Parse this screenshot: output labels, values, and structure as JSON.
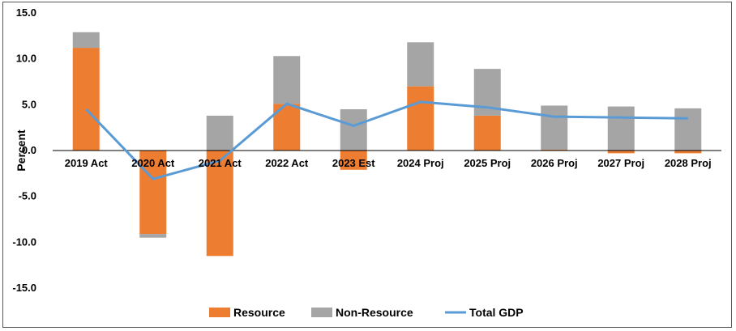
{
  "chart_data": {
    "type": "bar",
    "stacked": true,
    "title": "",
    "xlabel": "",
    "ylabel": "Percent",
    "ylim": [
      -15,
      15
    ],
    "yticks": [
      15.0,
      10.0,
      5.0,
      0.0,
      -5.0,
      -10.0,
      -15.0
    ],
    "ytick_labels": [
      "15.0",
      "10.0",
      "5.0",
      "0.0",
      "-5.0",
      "-10.0",
      "-15.0"
    ],
    "categories": [
      "2019 Act",
      "2020 Act",
      "2021 Act",
      "2022 Act",
      "2023 Est",
      "2024 Proj",
      "2025 Proj",
      "2026 Proj",
      "2027 Proj",
      "2028 Proj"
    ],
    "series": [
      {
        "name": "Resource",
        "type": "bar",
        "color": "#ED7D31",
        "values": [
          11.2,
          -9.1,
          -11.5,
          5.1,
          -2.1,
          7.0,
          3.8,
          0.1,
          -0.3,
          -0.3
        ]
      },
      {
        "name": "Non-Resource",
        "type": "bar",
        "color": "#A5A5A5",
        "values": [
          1.7,
          -0.4,
          3.8,
          5.2,
          4.5,
          4.8,
          5.1,
          4.8,
          4.8,
          4.6
        ]
      },
      {
        "name": "Total GDP",
        "type": "line",
        "color": "#5B9BD5",
        "values": [
          4.5,
          -3.1,
          -1.1,
          5.1,
          2.7,
          5.3,
          4.7,
          3.7,
          3.6,
          3.5
        ]
      }
    ],
    "legend": [
      "Resource",
      "Non-Resource",
      "Total GDP"
    ],
    "legend_position": "bottom",
    "grid": false
  }
}
